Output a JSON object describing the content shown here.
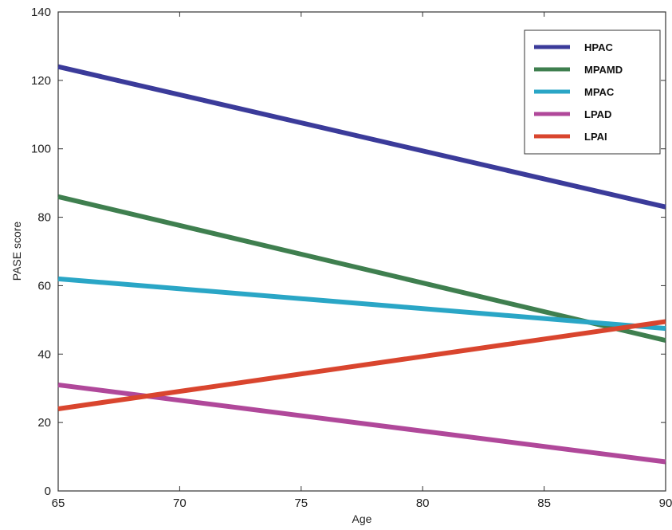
{
  "chart_data": {
    "type": "line",
    "xlabel": "Age",
    "ylabel": "PASE score",
    "xlim": [
      65,
      90
    ],
    "ylim": [
      0,
      140
    ],
    "xticks": [
      65,
      70,
      75,
      80,
      85,
      90
    ],
    "yticks": [
      0,
      20,
      40,
      60,
      80,
      100,
      120,
      140
    ],
    "grid": false,
    "legend_position": "top-right",
    "x": [
      65,
      90
    ],
    "series": [
      {
        "name": "HPAC",
        "color": "#3b3b9a",
        "values": [
          124,
          83
        ]
      },
      {
        "name": "MPAMD",
        "color": "#3f7f4f",
        "values": [
          86,
          44
        ]
      },
      {
        "name": "MPAC",
        "color": "#2aa6c6",
        "values": [
          62,
          47.5
        ]
      },
      {
        "name": "LPAD",
        "color": "#b0489a",
        "values": [
          31,
          8.5
        ]
      },
      {
        "name": "LPAI",
        "color": "#d9452e",
        "values": [
          24,
          49.5
        ]
      }
    ]
  }
}
